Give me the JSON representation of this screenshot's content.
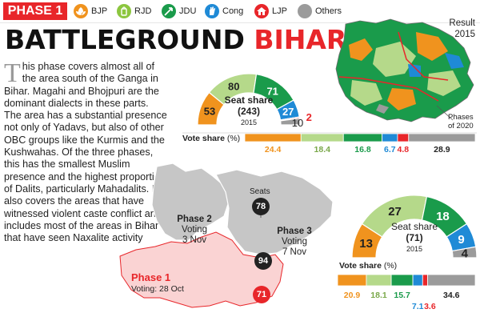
{
  "top_bar": {
    "phase_label": "PHASE 1",
    "parties": [
      {
        "name": "BJP",
        "color": "#f0931e",
        "icon": "lotus-icon"
      },
      {
        "name": "RJD",
        "color": "#8cc63f",
        "icon": "lantern-icon"
      },
      {
        "name": "JDU",
        "color": "#1a9b4b",
        "icon": "arrow-icon"
      },
      {
        "name": "Cong",
        "color": "#1f8ad6",
        "icon": "hand-icon"
      },
      {
        "name": "LJP",
        "color": "#e8262a",
        "icon": "bungalow-icon"
      },
      {
        "name": "Others",
        "color": "#9b9b9b",
        "icon": "circle-icon"
      }
    ]
  },
  "title": {
    "part1": "BATTLEGROUND",
    "part2": "BIHAR"
  },
  "body": {
    "drop_cap": "T",
    "text": "his phase covers almost all of the area south of the Ganga in Bihar. Magahi and Bhojpuri are the dominant dialects in these parts. The area has a substantial presence not only of Yadavs, but also of other OBC groups like the Kurmis and the Kushwahas. Of the three phases, this has the smallest Muslim presence and the highest proportion of Dalits, particularly Mahadalits. It also covers the areas that have witnessed violent caste conflict and includes most of the areas in Bihar that have seen Naxalite activity"
  },
  "result_map": {
    "label_line1": "Result",
    "label_line2": "2015",
    "phases_label_line1": "Phases",
    "phases_label_line2": "of 2020"
  },
  "seat_share_2015": {
    "title_line1": "Seat share",
    "title_line2": "(243)",
    "year": "2015",
    "segments": [
      {
        "party": "BJP",
        "value": 53,
        "label": "53",
        "color": "#f0931e"
      },
      {
        "party": "RJD",
        "value": 80,
        "label": "80",
        "color": "#b5d98a"
      },
      {
        "party": "JDU",
        "value": 71,
        "label": "71",
        "color": "#1a9b4b"
      },
      {
        "party": "Cong",
        "value": 27,
        "label": "27",
        "color": "#1f8ad6"
      },
      {
        "party": "LJP",
        "value": 2,
        "label": "2",
        "color": "#e8262a"
      },
      {
        "party": "Others",
        "value": 10,
        "label": "10",
        "color": "#9b9b9b"
      }
    ]
  },
  "vote_share_2015": {
    "title": "Vote share",
    "unit": "(%)",
    "segments": [
      {
        "party": "BJP",
        "value": 24.4,
        "label": "24.4",
        "color": "#f0931e"
      },
      {
        "party": "RJD",
        "value": 18.4,
        "label": "18.4",
        "color": "#b5d98a"
      },
      {
        "party": "JDU",
        "value": 16.8,
        "label": "16.8",
        "color": "#1a9b4b"
      },
      {
        "party": "Cong",
        "value": 6.7,
        "label": "6.7",
        "color": "#1f8ad6"
      },
      {
        "party": "LJP",
        "value": 4.8,
        "label": "4.8",
        "color": "#e8262a"
      },
      {
        "party": "Others",
        "value": 28.9,
        "label": "28.9",
        "color": "#9b9b9b"
      }
    ]
  },
  "phase_map": {
    "seats_label": "Seats",
    "phase2": {
      "name": "Phase 2",
      "voting_line1": "Voting",
      "voting_line2": "3 Nov",
      "seats": "78"
    },
    "phase3": {
      "name": "Phase 3",
      "voting_line1": "Voting",
      "voting_line2": "7 Nov",
      "seats": "94"
    },
    "phase1": {
      "name": "Phase 1",
      "voting": "Voting: 28 Oct",
      "seats": "71"
    }
  },
  "seat_share_phase1": {
    "title_line1": "Seat share",
    "title_line2": "(71)",
    "year": "2015",
    "segments": [
      {
        "party": "BJP",
        "value": 13,
        "label": "13",
        "color": "#f0931e"
      },
      {
        "party": "RJD",
        "value": 27,
        "label": "27",
        "color": "#b5d98a"
      },
      {
        "party": "JDU",
        "value": 18,
        "label": "18",
        "color": "#1a9b4b"
      },
      {
        "party": "Cong",
        "value": 9,
        "label": "9",
        "color": "#1f8ad6"
      },
      {
        "party": "Others",
        "value": 4,
        "label": "4",
        "color": "#9b9b9b"
      }
    ]
  },
  "vote_share_phase1": {
    "title": "Vote share",
    "unit": "(%)",
    "segments": [
      {
        "party": "BJP",
        "value": 20.9,
        "label": "20.9",
        "color": "#f0931e"
      },
      {
        "party": "RJD",
        "value": 18.1,
        "label": "18.1",
        "color": "#b5d98a"
      },
      {
        "party": "JDU",
        "value": 15.7,
        "label": "15.7",
        "color": "#1a9b4b"
      },
      {
        "party": "Cong",
        "value": 7.1,
        "label": "7.1",
        "color": "#1f8ad6"
      },
      {
        "party": "LJP",
        "value": 3.6,
        "label": "3.6",
        "color": "#e8262a"
      },
      {
        "party": "Others",
        "value": 34.6,
        "label": "34.6",
        "color": "#9b9b9b"
      }
    ]
  }
}
